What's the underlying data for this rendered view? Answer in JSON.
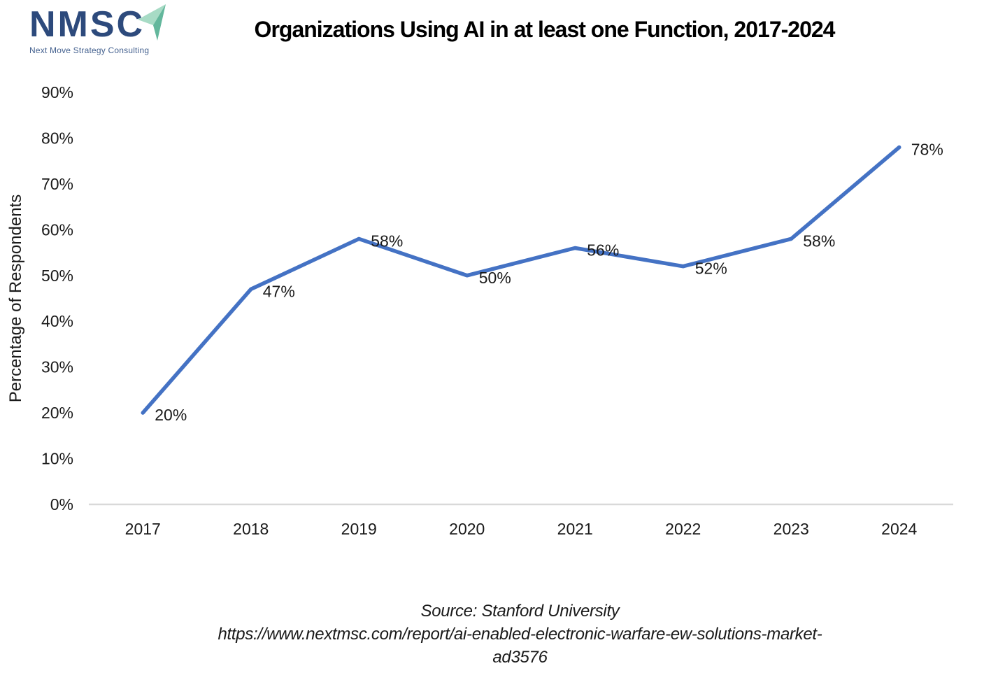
{
  "logo": {
    "acronym": "NMSC",
    "tagline": "Next Move Strategy Consulting",
    "navy": "#2d4a7c",
    "teal_light": "#a7dbc5",
    "teal_dark": "#63b79c"
  },
  "title": "Organizations Using AI in at least one Function, 2017-2024",
  "chart_data": {
    "type": "line",
    "title": "Organizations Using AI in at least one Function, 2017-2024",
    "categories": [
      "2017",
      "2018",
      "2019",
      "2020",
      "2021",
      "2022",
      "2023",
      "2024"
    ],
    "values": [
      20,
      47,
      58,
      50,
      56,
      52,
      58,
      78
    ],
    "point_labels": [
      "20%",
      "47%",
      "58%",
      "50%",
      "56%",
      "52%",
      "58%",
      "78%"
    ],
    "xlabel": "",
    "ylabel": "Percentage of Respondents",
    "ylim": [
      0,
      90
    ],
    "ytick_step": 10,
    "ytick_labels": [
      "0%",
      "10%",
      "20%",
      "30%",
      "40%",
      "50%",
      "60%",
      "70%",
      "80%",
      "90%"
    ],
    "grid": false,
    "legend": "none",
    "line_color": "#4472C4",
    "axis_color": "#D9D9D9",
    "text_color": "#1a1a1a"
  },
  "source": {
    "line1": "Source: Stanford University",
    "line2": "https://www.nextmsc.com/report/ai-enabled-electronic-warfare-ew-solutions-market-",
    "line3": "ad3576"
  }
}
